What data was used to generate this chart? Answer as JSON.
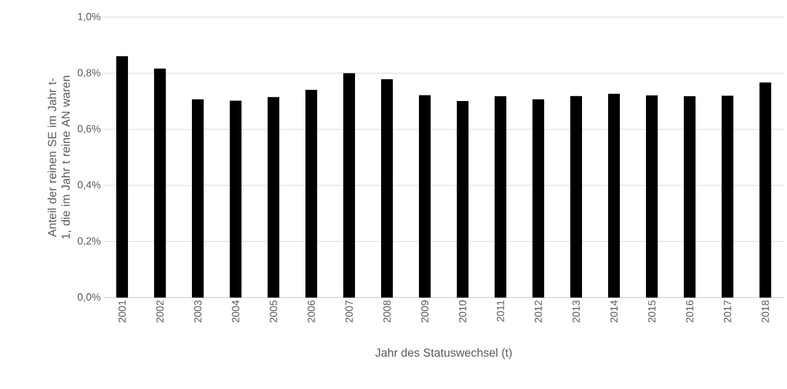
{
  "chart_data": {
    "type": "bar",
    "xlabel": "Jahr des Statuswechsel (t)",
    "ylabel": "Anteil der reinen SE im Jahr t-1, die im Jahr t reine AN waren",
    "categories": [
      "2001",
      "2002",
      "2003",
      "2004",
      "2005",
      "2006",
      "2007",
      "2008",
      "2009",
      "2010",
      "2011",
      "2012",
      "2013",
      "2014",
      "2015",
      "2016",
      "2017",
      "2018"
    ],
    "values": [
      0.861,
      0.817,
      0.707,
      0.702,
      0.715,
      0.741,
      0.8,
      0.779,
      0.722,
      0.701,
      0.718,
      0.707,
      0.719,
      0.727,
      0.721,
      0.718,
      0.72,
      0.767
    ],
    "color": "#000000",
    "ylim": [
      0,
      1
    ],
    "yticks": [
      {
        "value": 0,
        "label": "0,0%"
      },
      {
        "value": 0.2,
        "label": "0,2%"
      },
      {
        "value": 0.4,
        "label": "0,4%"
      },
      {
        "value": 0.6,
        "label": "0,6%"
      },
      {
        "value": 0.8,
        "label": "0,8%"
      },
      {
        "value": 1,
        "label": "1,0%"
      }
    ],
    "grid": "y"
  }
}
